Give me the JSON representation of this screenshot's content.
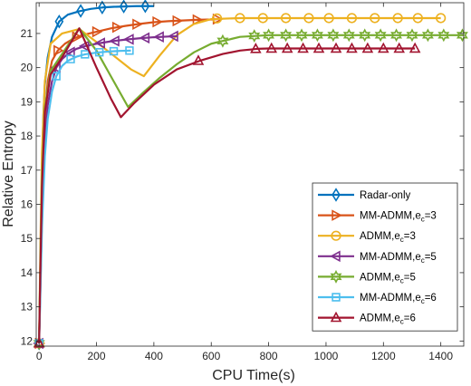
{
  "chart_data": {
    "type": "line",
    "title": "",
    "xlabel": "CPU Time(s)",
    "ylabel": "Relative Entropy",
    "xlim": [
      -10,
      1480
    ],
    "ylim": [
      11.85,
      21.9
    ],
    "x_ticks": [
      0,
      200,
      400,
      600,
      800,
      1000,
      1200,
      1400
    ],
    "y_ticks": [
      12,
      13,
      14,
      15,
      16,
      17,
      18,
      19,
      20,
      21
    ],
    "grid": false,
    "legend_position": "bottom-right",
    "series": [
      {
        "name": "Radar-only",
        "label_main": "Radar-only",
        "label_sub": "",
        "label_tail": "",
        "color": "#0072BD",
        "marker": "diamond",
        "x": [
          0,
          5,
          10,
          15,
          20,
          30,
          45,
          70,
          100,
          140,
          180,
          220,
          260,
          300,
          340,
          380,
          400
        ],
        "y": [
          11.93,
          14.5,
          17.0,
          18.6,
          19.5,
          20.3,
          20.9,
          21.35,
          21.55,
          21.65,
          21.72,
          21.76,
          21.78,
          21.79,
          21.8,
          21.8,
          21.8
        ],
        "marker_x": [
          0,
          70,
          145,
          220,
          295,
          370
        ],
        "marker_y": [
          11.93,
          21.35,
          21.66,
          21.76,
          21.79,
          21.8
        ]
      },
      {
        "name": "MM-ADMM,e_c=3",
        "label_main": "MM-ADMM,e",
        "label_sub": "c",
        "label_tail": "=3",
        "color": "#D95319",
        "marker": "triangle-right",
        "x": [
          0,
          5,
          10,
          20,
          30,
          45,
          65,
          90,
          120,
          150,
          200,
          250,
          300,
          350,
          400,
          450,
          500,
          550,
          600,
          620
        ],
        "y": [
          11.93,
          14.2,
          16.3,
          18.5,
          19.6,
          20.2,
          20.5,
          20.7,
          20.85,
          20.95,
          21.05,
          21.15,
          21.22,
          21.28,
          21.33,
          21.36,
          21.38,
          21.4,
          21.41,
          21.42
        ],
        "marker_x": [
          0,
          65,
          130,
          200,
          270,
          340,
          410,
          480,
          550,
          620
        ],
        "marker_y": [
          11.93,
          20.5,
          20.9,
          21.05,
          21.18,
          21.27,
          21.34,
          21.37,
          21.4,
          21.42
        ]
      },
      {
        "name": "ADMM,e_c=3",
        "label_main": "ADMM,e",
        "label_sub": "c",
        "label_tail": "=3",
        "color": "#EDB120",
        "marker": "circle",
        "x": [
          0,
          5,
          10,
          20,
          40,
          80,
          140,
          200,
          260,
          320,
          365,
          420,
          480,
          540,
          600,
          700,
          800,
          1000,
          1200,
          1400
        ],
        "y": [
          11.93,
          15.0,
          17.5,
          19.6,
          20.7,
          21.0,
          21.13,
          20.75,
          20.35,
          19.95,
          19.75,
          20.35,
          20.95,
          21.28,
          21.42,
          21.45,
          21.45,
          21.45,
          21.45,
          21.45
        ],
        "marker_x": [
          0,
          620,
          700,
          780,
          860,
          940,
          1010,
          1090,
          1170,
          1250,
          1320,
          1400
        ],
        "marker_y": [
          11.93,
          21.44,
          21.45,
          21.45,
          21.45,
          21.45,
          21.45,
          21.45,
          21.45,
          21.45,
          21.45,
          21.45
        ]
      },
      {
        "name": "MM-ADMM,e_c=5",
        "label_main": "MM-ADMM,e",
        "label_sub": "c",
        "label_tail": "=5",
        "color": "#7E2F8E",
        "marker": "triangle-left",
        "x": [
          0,
          5,
          10,
          20,
          30,
          45,
          60,
          80,
          100,
          130,
          160,
          200,
          250,
          300,
          350,
          400,
          450,
          480
        ],
        "y": [
          11.93,
          13.8,
          15.6,
          17.8,
          18.9,
          19.6,
          20.0,
          20.25,
          20.4,
          20.55,
          20.63,
          20.7,
          20.77,
          20.82,
          20.86,
          20.89,
          20.91,
          20.92
        ],
        "marker_x": [
          0,
          60,
          110,
          160,
          215,
          265,
          315,
          370,
          420,
          470
        ],
        "marker_y": [
          11.93,
          20.0,
          20.45,
          20.63,
          20.72,
          20.78,
          20.83,
          20.87,
          20.9,
          20.92
        ]
      },
      {
        "name": "ADMM,e_c=5",
        "label_main": "ADMM,e",
        "label_sub": "c",
        "label_tail": "=5",
        "color": "#77AC30",
        "marker": "hexagram",
        "x": [
          0,
          5,
          10,
          20,
          40,
          80,
          140,
          200,
          260,
          310,
          360,
          420,
          480,
          540,
          600,
          640,
          700,
          760,
          800,
          1000,
          1200,
          1480
        ],
        "y": [
          11.93,
          14.6,
          16.8,
          18.8,
          19.9,
          20.4,
          21.15,
          20.5,
          19.6,
          18.85,
          19.25,
          19.7,
          20.1,
          20.45,
          20.7,
          20.78,
          20.9,
          20.93,
          20.95,
          20.95,
          20.95,
          20.95
        ],
        "marker_x": [
          0,
          640,
          750,
          800,
          860,
          915,
          970,
          1025,
          1080,
          1135,
          1190,
          1245,
          1300,
          1355,
          1410,
          1475
        ],
        "marker_y": [
          11.93,
          20.78,
          20.93,
          20.95,
          20.95,
          20.95,
          20.95,
          20.95,
          20.95,
          20.95,
          20.95,
          20.95,
          20.95,
          20.95,
          20.95,
          20.95
        ]
      },
      {
        "name": "MM-ADMM,e_c=6",
        "label_main": "MM-ADMM,e",
        "label_sub": "c",
        "label_tail": "=6",
        "color": "#4DBEEE",
        "marker": "square",
        "x": [
          0,
          5,
          10,
          20,
          30,
          45,
          60,
          80,
          100,
          130,
          160,
          200,
          240,
          280,
          320
        ],
        "y": [
          11.93,
          13.6,
          15.3,
          17.4,
          18.5,
          19.3,
          19.75,
          20.05,
          20.2,
          20.32,
          20.39,
          20.44,
          20.47,
          20.49,
          20.5
        ],
        "marker_x": [
          0,
          60,
          110,
          160,
          210,
          260,
          315
        ],
        "marker_y": [
          11.93,
          19.75,
          20.25,
          20.39,
          20.45,
          20.48,
          20.5
        ]
      },
      {
        "name": "ADMM,e_c=6",
        "label_main": "ADMM,e",
        "label_sub": "c",
        "label_tail": "=6",
        "color": "#A2142F",
        "marker": "triangle-up",
        "x": [
          0,
          5,
          10,
          20,
          40,
          80,
          140,
          200,
          250,
          285,
          330,
          400,
          480,
          560,
          640,
          700,
          760,
          800,
          1000,
          1200,
          1310
        ],
        "y": [
          11.93,
          14.3,
          16.5,
          18.7,
          19.8,
          20.3,
          21.15,
          20.0,
          19.1,
          18.55,
          18.95,
          19.5,
          19.95,
          20.2,
          20.4,
          20.5,
          20.55,
          20.56,
          20.56,
          20.56,
          20.56
        ],
        "marker_x": [
          0,
          555,
          755,
          810,
          865,
          920,
          975,
          1035,
          1090,
          1145,
          1200,
          1255,
          1310
        ],
        "marker_y": [
          11.93,
          20.2,
          20.55,
          20.56,
          20.56,
          20.56,
          20.56,
          20.56,
          20.56,
          20.56,
          20.56,
          20.56,
          20.56
        ]
      }
    ]
  }
}
